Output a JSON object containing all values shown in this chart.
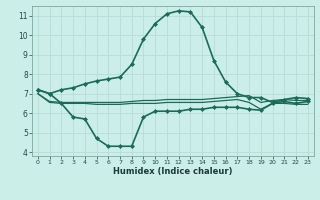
{
  "xlabel": "Humidex (Indice chaleur)",
  "background_color": "#cceee8",
  "grid_color": "#b8dcd8",
  "line_color": "#1a6b5a",
  "x_ticks": [
    0,
    1,
    2,
    3,
    4,
    5,
    6,
    7,
    8,
    9,
    10,
    11,
    12,
    13,
    14,
    15,
    16,
    17,
    18,
    19,
    20,
    21,
    22,
    23
  ],
  "y_ticks": [
    4,
    5,
    6,
    7,
    8,
    9,
    10,
    11
  ],
  "xlim": [
    -0.5,
    23.5
  ],
  "ylim": [
    3.8,
    11.5
  ],
  "series": [
    {
      "x": [
        0,
        1,
        2,
        3,
        4,
        5,
        6,
        7,
        8,
        9,
        10,
        11,
        12,
        13,
        14,
        15,
        16,
        17,
        18,
        19,
        20,
        21,
        22,
        23
      ],
      "y": [
        7.2,
        7.0,
        7.2,
        7.3,
        7.5,
        7.65,
        7.75,
        7.85,
        8.5,
        9.8,
        10.6,
        11.1,
        11.25,
        11.2,
        10.4,
        8.7,
        7.6,
        7.0,
        6.8,
        6.8,
        6.55,
        6.7,
        6.8,
        6.75
      ],
      "color": "#1a6b5a",
      "linewidth": 1.2,
      "marker": "D",
      "markersize": 2.0,
      "zorder": 4
    },
    {
      "x": [
        0,
        1,
        2,
        3,
        4,
        5,
        6,
        7,
        8,
        9,
        10,
        11,
        12,
        13,
        14,
        15,
        16,
        17,
        18,
        19,
        20,
        21,
        22,
        23
      ],
      "y": [
        7.0,
        6.6,
        6.55,
        6.55,
        6.55,
        6.55,
        6.55,
        6.55,
        6.6,
        6.65,
        6.65,
        6.7,
        6.7,
        6.7,
        6.7,
        6.75,
        6.8,
        6.85,
        6.9,
        6.55,
        6.65,
        6.7,
        6.65,
        6.65
      ],
      "color": "#1a6b5a",
      "linewidth": 0.9,
      "marker": null,
      "markersize": 0,
      "zorder": 3
    },
    {
      "x": [
        0,
        1,
        2,
        3,
        4,
        5,
        6,
        7,
        8,
        9,
        10,
        11,
        12,
        13,
        14,
        15,
        16,
        17,
        18,
        19,
        20,
        21,
        22,
        23
      ],
      "y": [
        7.0,
        6.55,
        6.5,
        6.5,
        6.5,
        6.45,
        6.45,
        6.45,
        6.5,
        6.5,
        6.5,
        6.55,
        6.55,
        6.55,
        6.55,
        6.6,
        6.65,
        6.7,
        6.55,
        6.2,
        6.5,
        6.5,
        6.45,
        6.45
      ],
      "color": "#1a6b5a",
      "linewidth": 0.9,
      "marker": null,
      "markersize": 0,
      "zorder": 3
    },
    {
      "x": [
        0,
        1,
        2,
        3,
        4,
        5,
        6,
        7,
        8,
        9,
        10,
        11,
        12,
        13,
        14,
        15,
        16,
        17,
        18,
        19,
        20,
        21,
        22,
        23
      ],
      "y": [
        7.2,
        7.0,
        6.5,
        5.8,
        5.7,
        4.7,
        4.3,
        4.3,
        4.3,
        5.8,
        6.1,
        6.1,
        6.1,
        6.2,
        6.2,
        6.3,
        6.3,
        6.3,
        6.2,
        6.15,
        6.5,
        6.6,
        6.5,
        6.6
      ],
      "color": "#1a6b5a",
      "linewidth": 1.2,
      "marker": "D",
      "markersize": 2.0,
      "zorder": 4
    }
  ]
}
